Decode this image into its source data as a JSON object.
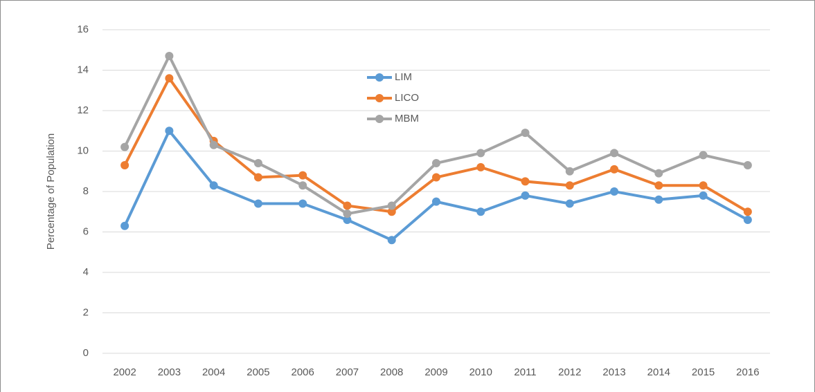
{
  "chart_data": {
    "type": "line",
    "y_label": "Percentage of Population",
    "categories": [
      "2002",
      "2003",
      "2004",
      "2005",
      "2006",
      "2007",
      "2008",
      "2009",
      "2010",
      "2011",
      "2012",
      "2013",
      "2014",
      "2015",
      "2016"
    ],
    "series": [
      {
        "name": "LIM",
        "color": "#5b9bd5",
        "values": [
          6.3,
          11.0,
          8.3,
          7.4,
          7.4,
          6.6,
          5.6,
          7.5,
          7.0,
          7.8,
          7.4,
          8.0,
          7.6,
          7.8,
          6.6
        ]
      },
      {
        "name": "LICO",
        "color": "#ed7d31",
        "values": [
          9.3,
          13.6,
          10.5,
          8.7,
          8.8,
          7.3,
          7.0,
          8.7,
          9.2,
          8.5,
          8.3,
          9.1,
          8.3,
          8.3,
          7.0
        ]
      },
      {
        "name": "MBM",
        "color": "#a5a5a5",
        "values": [
          10.2,
          14.7,
          10.3,
          9.4,
          8.3,
          6.9,
          7.3,
          9.4,
          9.9,
          10.9,
          9.0,
          9.9,
          8.9,
          9.8,
          9.3
        ]
      }
    ],
    "ylim": [
      0,
      16
    ],
    "yticks": [
      0,
      2,
      4,
      6,
      8,
      10,
      12,
      14,
      16
    ],
    "grid": true,
    "legend": "top-center"
  }
}
